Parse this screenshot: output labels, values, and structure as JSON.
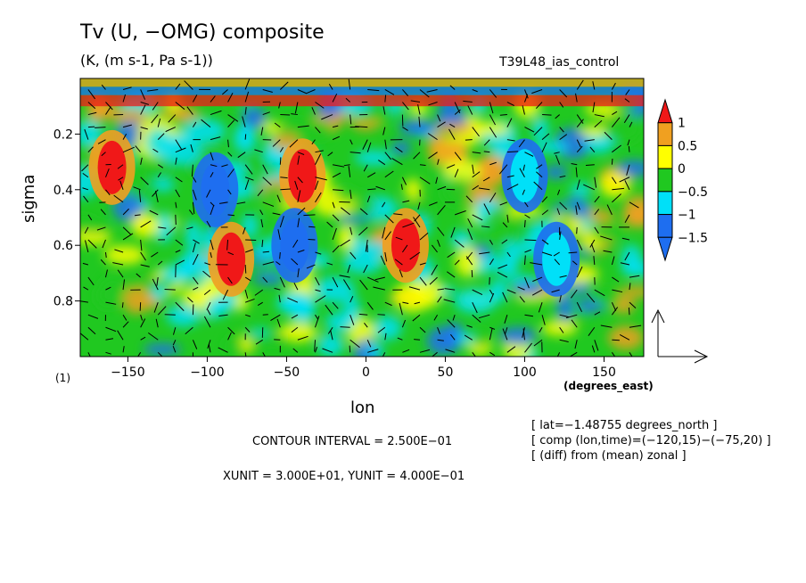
{
  "chart_data": {
    "type": "heatmap",
    "title": "Tv (U, −OMG) composite",
    "units_line": "(K, (m s-1, Pa s-1))",
    "run_name": "T39L48_ias_control",
    "xlabel": "lon",
    "x_unit_label": "(degrees_east)",
    "ylabel": "sigma",
    "panel_label": "(1)",
    "xlim": [
      -180,
      175
    ],
    "ylim": [
      1.0,
      0.0
    ],
    "x_ticks": [
      -150,
      -100,
      -50,
      0,
      50,
      100,
      150
    ],
    "x_tick_labels": [
      "−150",
      "−100",
      "−50",
      "0",
      "50",
      "100",
      "150"
    ],
    "y_ticks": [
      0.2,
      0.4,
      0.6,
      0.8
    ],
    "y_tick_labels": [
      "0.2",
      "0.4",
      "0.6",
      "0.8"
    ],
    "colorbar": {
      "levels": [
        -1.5,
        -1,
        -0.5,
        0,
        0.5,
        1
      ],
      "labels": [
        "−1.5",
        "−1",
        "−0.5",
        "0",
        "0.5",
        "1"
      ],
      "colors": [
        "#1e6ef0",
        "#00e0f8",
        "#20c820",
        "#ffff00",
        "#f0a020",
        "#f01818"
      ]
    },
    "notable_features": [
      {
        "lon": -40,
        "sigma": 0.35,
        "value": 1.2
      },
      {
        "lon": 25,
        "sigma": 0.6,
        "value": 1.1
      },
      {
        "lon": -85,
        "sigma": 0.65,
        "value": 1.0
      },
      {
        "lon": -160,
        "sigma": 0.32,
        "value": 1.0
      },
      {
        "lon": -95,
        "sigma": 0.4,
        "value": -1.2
      },
      {
        "lon": -45,
        "sigma": 0.6,
        "value": -1.3
      },
      {
        "lon": 120,
        "sigma": 0.65,
        "value": -1.0
      },
      {
        "lon": 100,
        "sigma": 0.35,
        "value": -1.0
      }
    ],
    "contour_interval_text": "CONTOUR INTERVAL = 2.500E−01",
    "unit_text": "XUNIT = 3.000E+01, YUNIT = 4.000E−01",
    "info_lines": [
      "[ lat=−1.48755 degrees_north ]",
      "[ comp (lon,time)=(−120,15)−(−75,20) ]",
      "[ (diff) from (mean) zonal ]"
    ]
  }
}
